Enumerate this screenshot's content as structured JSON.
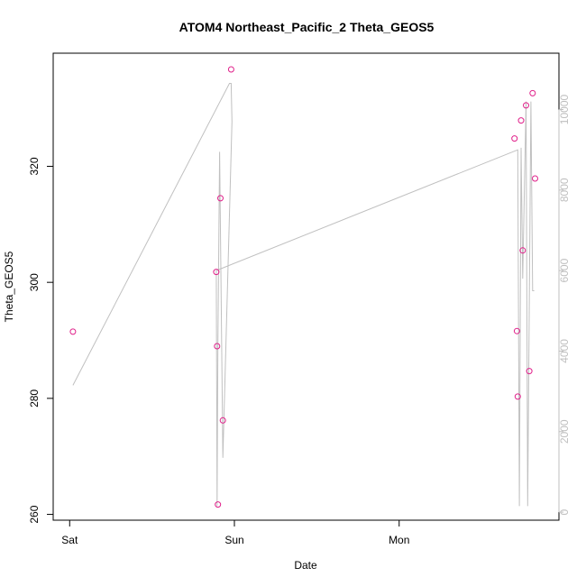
{
  "chart_data": {
    "type": "scatter",
    "title": "ATOM4 Northeast_Pacific_2 Theta_GEOS5",
    "xlabel": "Date",
    "ylabel": "Theta_GEOS5",
    "x_tick_labels": [
      "Sat",
      "Sun",
      "Mon"
    ],
    "x_ticks_day_offset": [
      0,
      1,
      2
    ],
    "xlim_day_offset": [
      -0.1,
      2.97
    ],
    "ylim": [
      259,
      339.5
    ],
    "y_ticks": [
      260,
      280,
      300,
      320
    ],
    "y2_ticks": [
      0,
      2000,
      4000,
      6000,
      8000,
      10000
    ],
    "y2lim": [
      -200,
      11400
    ],
    "series": [
      {
        "role": "points",
        "color": "#e0208a",
        "marker": "open-circle",
        "x_day_offset": [
          0.02,
          0.89,
          0.895,
          0.9,
          0.915,
          0.93,
          0.98,
          2.7,
          2.715,
          2.72,
          2.74,
          2.75,
          2.77,
          2.79,
          2.81,
          2.825
        ],
        "y": [
          291.5,
          301.8,
          289.0,
          261.7,
          314.5,
          276.2,
          336.7,
          324.8,
          291.6,
          280.3,
          327.9,
          305.5,
          330.5,
          284.7,
          332.6,
          317.9
        ]
      },
      {
        "role": "line",
        "color": "#c0c0c0",
        "axis": "right",
        "x_day_offset": [
          0.02,
          0.97,
          0.98,
          0.985,
          0.93,
          0.91,
          0.9,
          0.895,
          0.89,
          2.72,
          2.73,
          2.74,
          2.75,
          2.77,
          2.78,
          2.8,
          2.81,
          2.82
        ],
        "y": [
          3150,
          10650,
          10650,
          9700,
          1350,
          8950,
          4200,
          150,
          6000,
          9000,
          150,
          9050,
          5800,
          10200,
          150,
          10200,
          5500,
          5500
        ]
      }
    ]
  }
}
